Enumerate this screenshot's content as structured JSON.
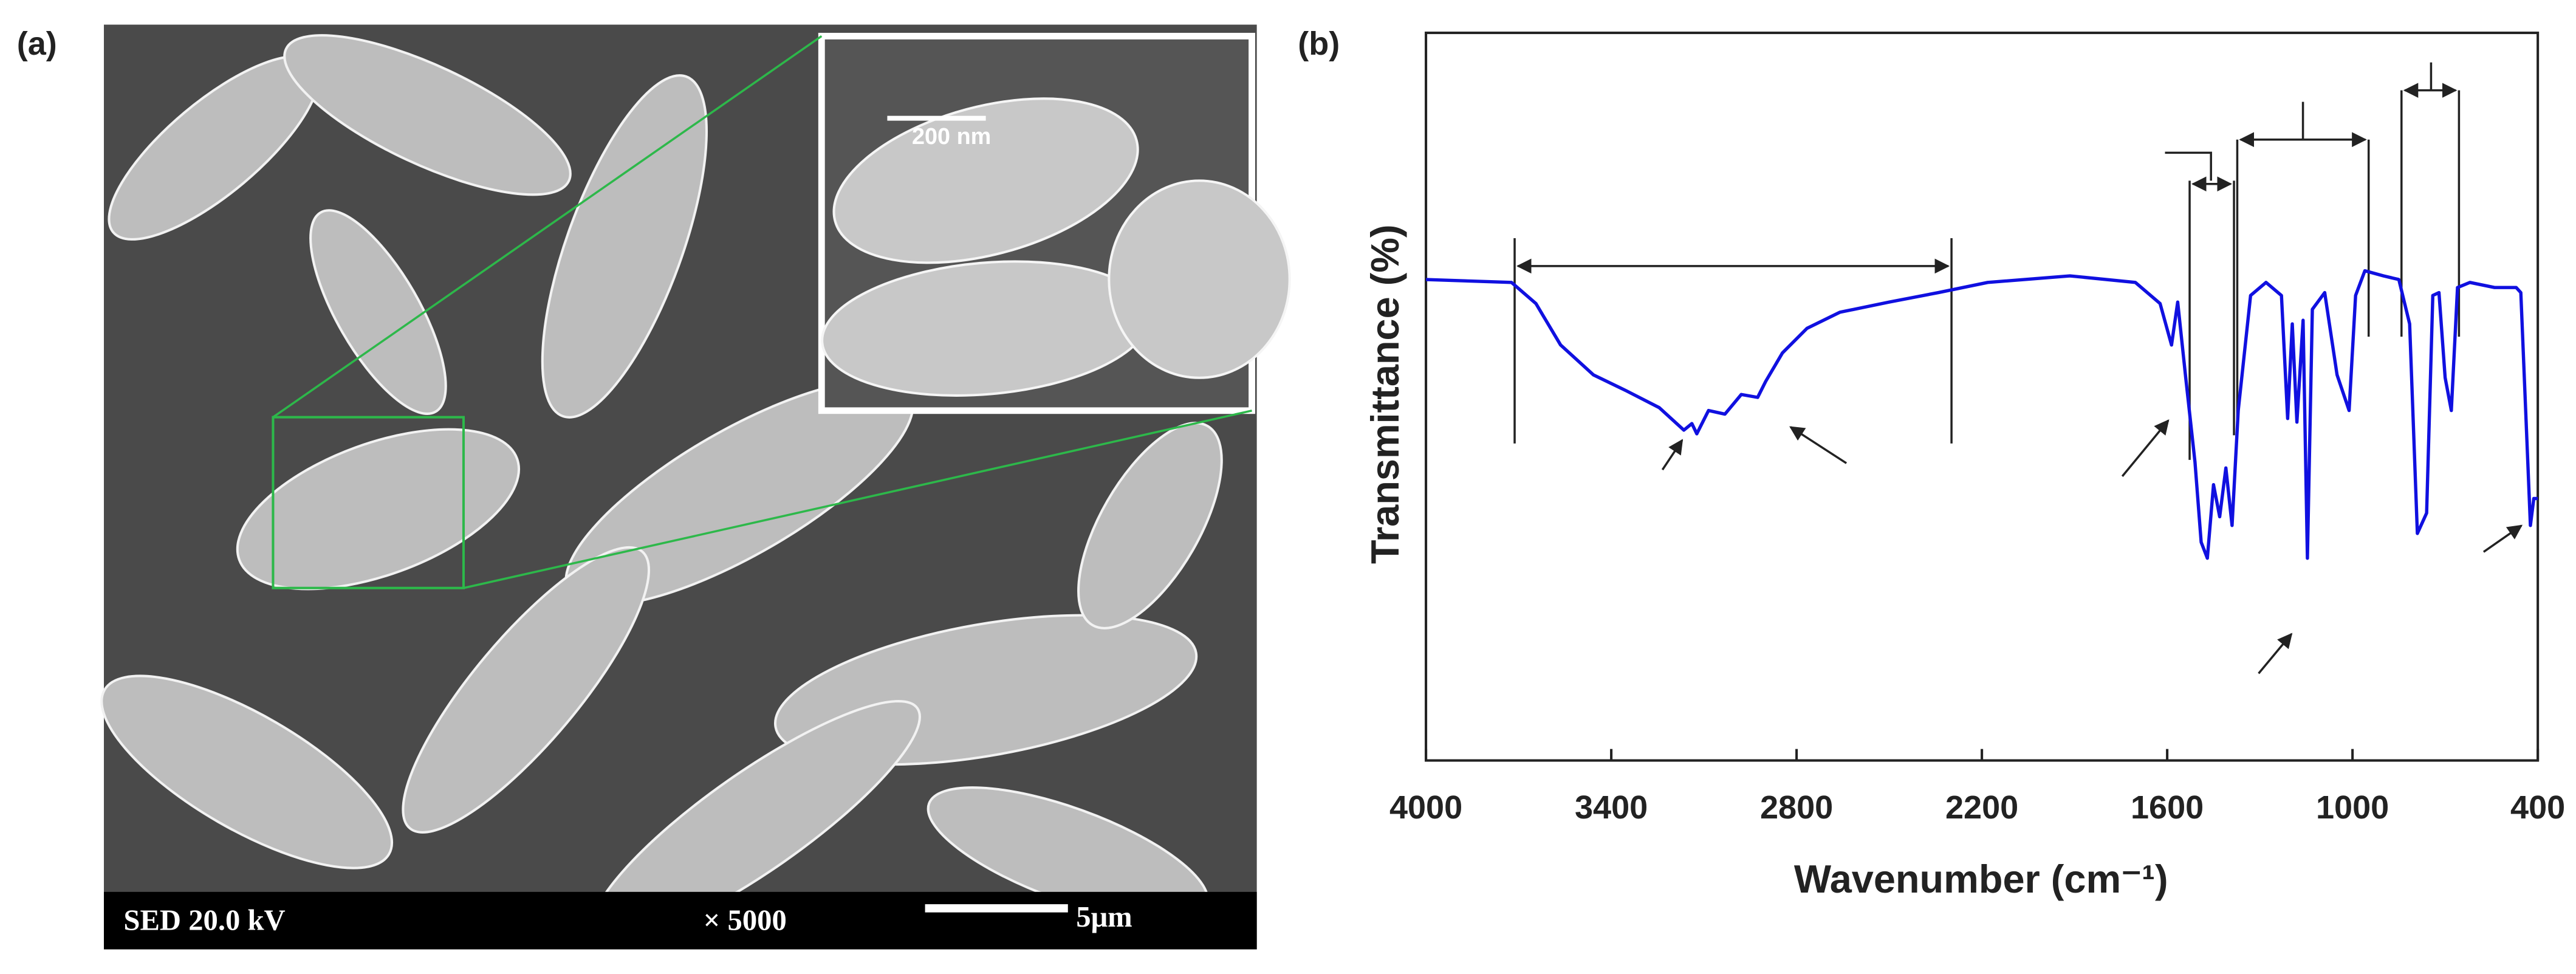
{
  "panel_a": {
    "label": "(a)",
    "scale_inset": "200 nm",
    "footer": {
      "mode": "SED  20.0 kV",
      "magnification": "× 5000",
      "scale_bar": "5μm"
    }
  },
  "chart_data": {
    "type": "line",
    "panel_label": "(b)",
    "x_label": "Wavenumber (cm⁻¹)",
    "y_label": "Transmittance (%)",
    "color": "#1010e0",
    "xlim": [
      4000,
      400
    ],
    "xticks": [
      4000,
      3400,
      2800,
      2200,
      1600,
      1000,
      400
    ],
    "ylim": [
      0,
      100
    ],
    "x": [
      4000,
      3723,
      3644,
      3564,
      3458,
      3351,
      3245,
      3165,
      3139,
      3123,
      3085,
      3032,
      2979,
      2926,
      2900,
      2846,
      2766,
      2660,
      2500,
      2341,
      2181,
      1915,
      1703,
      1623,
      1586,
      1566,
      1540,
      1510,
      1490,
      1470,
      1450,
      1430,
      1410,
      1390,
      1370,
      1330,
      1280,
      1230,
      1210,
      1195,
      1180,
      1160,
      1146,
      1130,
      1090,
      1050,
      1011,
      990,
      960,
      900,
      850,
      815,
      790,
      760,
      740,
      720,
      700,
      680,
      660,
      620,
      540,
      470,
      455,
      424,
      413,
      400
    ],
    "values": [
      66.1,
      65.7,
      62.8,
      57.1,
      53.0,
      50.8,
      48.5,
      45.4,
      46.3,
      44.9,
      48.1,
      47.6,
      50.3,
      49.9,
      52.1,
      56.0,
      59.4,
      61.6,
      63.0,
      64.3,
      65.7,
      66.6,
      65.7,
      62.8,
      57.1,
      63.0,
      52.6,
      41.0,
      30.0,
      27.8,
      37.9,
      33.5,
      40.2,
      32.3,
      48.1,
      63.9,
      65.7,
      63.9,
      47.0,
      60.0,
      46.5,
      60.5,
      27.8,
      62.0,
      64.3,
      53.0,
      48.1,
      63.9,
      67.3,
      66.6,
      66.1,
      60.0,
      31.2,
      34.0,
      63.9,
      64.3,
      52.6,
      48.1,
      65.0,
      65.7,
      65.0,
      65.0,
      64.3,
      32.3,
      36.0,
      36.0
    ]
  }
}
